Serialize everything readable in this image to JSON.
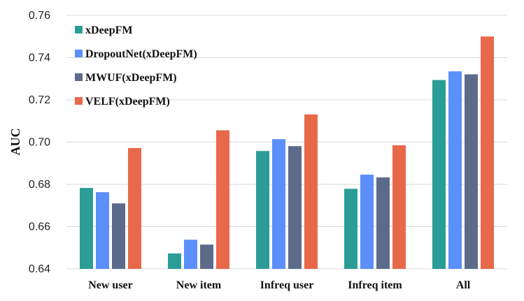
{
  "chart_data": {
    "type": "bar",
    "title": "",
    "xlabel": "",
    "ylabel": "AUC",
    "ylim": [
      0.64,
      0.76
    ],
    "yticks": [
      "0.64",
      "0.66",
      "0.68",
      "0.70",
      "0.72",
      "0.74",
      "0.76"
    ],
    "grid": true,
    "legend_position": "top-left",
    "categories": [
      "New user",
      "New item",
      "Infreq user",
      "Infreq item",
      "All"
    ],
    "series": [
      {
        "name": "xDeepFM",
        "color": "#2a9d96",
        "values": [
          0.6783,
          0.6473,
          0.6958,
          0.6779,
          0.7294
        ]
      },
      {
        "name": "DropoutNet(xDeepFM)",
        "color": "#5b8ff9",
        "values": [
          0.6763,
          0.6538,
          0.7014,
          0.6846,
          0.7335
        ]
      },
      {
        "name": "MWUF(xDeepFM)",
        "color": "#5d6b8a",
        "values": [
          0.671,
          0.6515,
          0.6981,
          0.6833,
          0.7321
        ]
      },
      {
        "name": "VELF(xDeepFM)",
        "color": "#e8694a",
        "values": [
          0.6972,
          0.7056,
          0.7131,
          0.6985,
          0.75
        ]
      }
    ]
  }
}
